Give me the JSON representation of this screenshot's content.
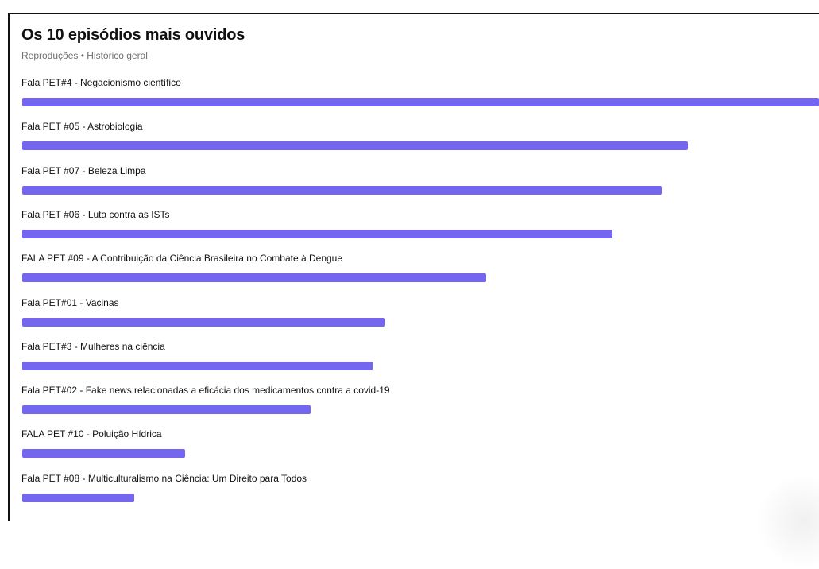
{
  "colors": {
    "bar": "#7466ef"
  },
  "header": {
    "title": "Os 10 episódios mais ouvidos",
    "subtitle": "Reproduções • Histórico geral"
  },
  "chart_data": {
    "type": "bar",
    "orientation": "horizontal",
    "title": "Os 10 episódios mais ouvidos",
    "subtitle": "Reproduções • Histórico geral",
    "categories": [
      "Fala PET#4 - Negacionismo científico",
      "Fala PET #05 - Astrobiologia",
      "Fala PET #07 - Beleza Limpa",
      "Fala PET #06 - Luta contra as ISTs",
      "FALA PET #09 - A Contribuição da Ciência Brasileira no Combate à Dengue",
      "Fala PET#01 - Vacinas",
      "Fala PET#3 - Mulheres na ciência",
      "Fala PET#02 - Fake news relacionadas a eficácia dos medicamentos contra a covid-19",
      "FALA PET #10 - Poluição Hídrica",
      "Fala PET #08 - Multiculturalismo na Ciência: Um Direito para Todos"
    ],
    "values": [
      100,
      83.5,
      80.3,
      74.1,
      58.2,
      45.6,
      44.0,
      36.2,
      20.4,
      14.1
    ],
    "value_unit": "percent of top episode",
    "grid": false,
    "legend": "none"
  }
}
